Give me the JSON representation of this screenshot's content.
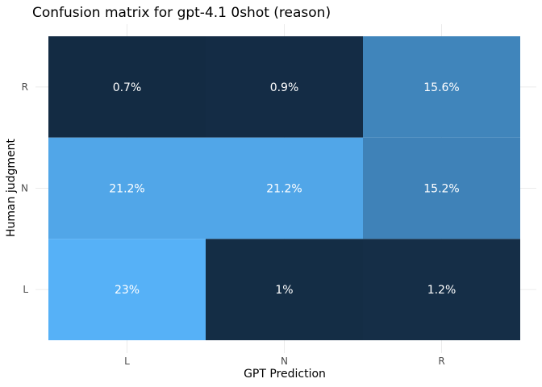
{
  "chart_data": {
    "type": "heatmap",
    "title": "Confusion matrix for gpt-4.1 0shot (reason)",
    "xlabel": "GPT Prediction",
    "ylabel": "Human judgment",
    "x_categories": [
      "L",
      "N",
      "R"
    ],
    "y_categories": [
      "L",
      "N",
      "R"
    ],
    "cells": [
      {
        "x": "L",
        "y": "R",
        "value": 0.7,
        "label": "0.7%"
      },
      {
        "x": "N",
        "y": "R",
        "value": 0.9,
        "label": "0.9%"
      },
      {
        "x": "R",
        "y": "R",
        "value": 15.6,
        "label": "15.6%"
      },
      {
        "x": "L",
        "y": "N",
        "value": 21.2,
        "label": "21.2%"
      },
      {
        "x": "N",
        "y": "N",
        "value": 21.2,
        "label": "21.2%"
      },
      {
        "x": "R",
        "y": "N",
        "value": 15.2,
        "label": "15.2%"
      },
      {
        "x": "L",
        "y": "L",
        "value": 23,
        "label": "23%"
      },
      {
        "x": "N",
        "y": "L",
        "value": 1,
        "label": "1%"
      },
      {
        "x": "R",
        "y": "L",
        "value": 1.2,
        "label": "1.2%"
      }
    ],
    "color_low": "#132B43",
    "color_high": "#56B1F7",
    "grid": true,
    "legend": "none"
  }
}
